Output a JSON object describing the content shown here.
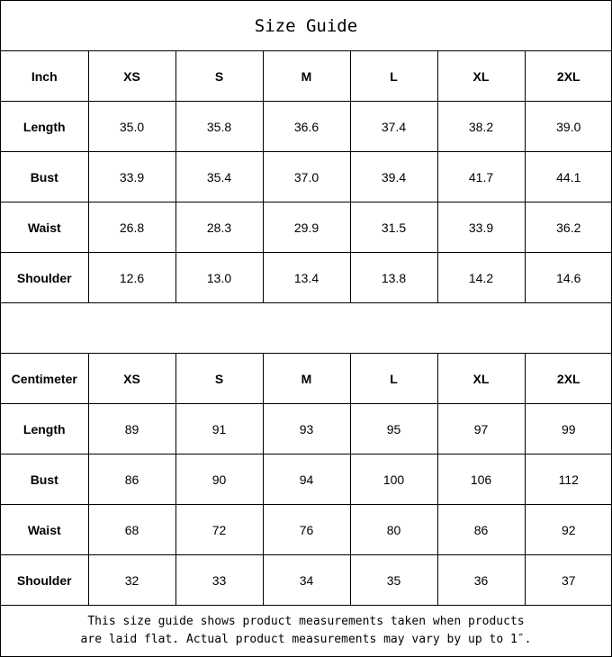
{
  "title": "Size Guide",
  "inch": {
    "header": [
      "Inch",
      "XS",
      "S",
      "M",
      "L",
      "XL",
      "2XL"
    ],
    "rows": [
      [
        "Length",
        "35.0",
        "35.8",
        "36.6",
        "37.4",
        "38.2",
        "39.0"
      ],
      [
        "Bust",
        "33.9",
        "35.4",
        "37.0",
        "39.4",
        "41.7",
        "44.1"
      ],
      [
        "Waist",
        "26.8",
        "28.3",
        "29.9",
        "31.5",
        "33.9",
        "36.2"
      ],
      [
        "Shoulder",
        "12.6",
        "13.0",
        "13.4",
        "13.8",
        "14.2",
        "14.6"
      ]
    ]
  },
  "cm": {
    "header": [
      "Centimeter",
      "XS",
      "S",
      "M",
      "L",
      "XL",
      "2XL"
    ],
    "rows": [
      [
        "Length",
        "89",
        "91",
        "93",
        "95",
        "97",
        "99"
      ],
      [
        "Bust",
        "86",
        "90",
        "94",
        "100",
        "106",
        "112"
      ],
      [
        "Waist",
        "68",
        "72",
        "76",
        "80",
        "86",
        "92"
      ],
      [
        "Shoulder",
        "32",
        "33",
        "34",
        "35",
        "36",
        "37"
      ]
    ]
  },
  "note": {
    "line1": "This size guide shows product measurements taken when products",
    "line2": "are laid flat. Actual product measurements may vary by up to 1″."
  }
}
